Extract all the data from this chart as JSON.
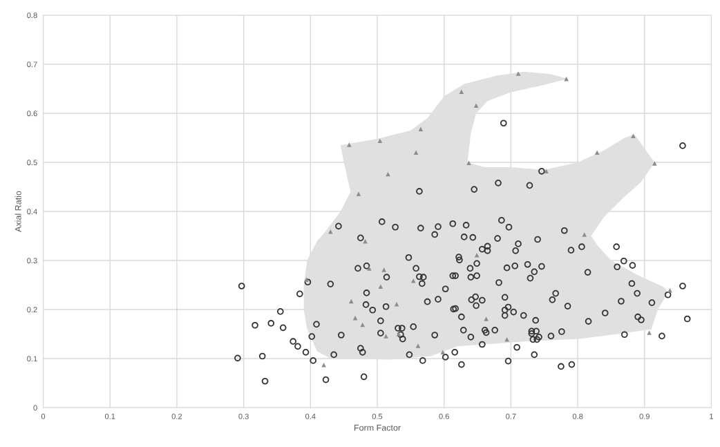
{
  "chart_data": {
    "type": "scatter",
    "xlabel": "Form Factor",
    "ylabel": "Axial Ratio",
    "xlim": [
      0,
      1
    ],
    "ylim": [
      0,
      0.8
    ],
    "xticks": [
      0,
      0.1,
      0.2,
      0.3,
      0.4,
      0.5,
      0.6,
      0.7,
      0.8,
      0.9,
      1
    ],
    "yticks": [
      0,
      0.1,
      0.2,
      0.3,
      0.4,
      0.5,
      0.6,
      0.7,
      0.8
    ],
    "grid": true,
    "series": [
      {
        "type": "area",
        "color": "#e0e0e0",
        "x": [
          0.39,
          0.395,
          0.41,
          0.42,
          0.445,
          0.46,
          0.45,
          0.445,
          0.5,
          0.55,
          0.575,
          0.6,
          0.63,
          0.68,
          0.72,
          0.76,
          0.785,
          0.74,
          0.7,
          0.665,
          0.648,
          0.64,
          0.635,
          0.66,
          0.7,
          0.75,
          0.8,
          0.84,
          0.87,
          0.885,
          0.915,
          0.895,
          0.87,
          0.84,
          0.82,
          0.83,
          0.85,
          0.89,
          0.93,
          0.935,
          0.92,
          0.91,
          0.86,
          0.8,
          0.72,
          0.62,
          0.58,
          0.52,
          0.43,
          0.41,
          0.395,
          0.39
        ],
        "values": [
          0.25,
          0.3,
          0.34,
          0.355,
          0.4,
          0.44,
          0.5,
          0.535,
          0.548,
          0.565,
          0.59,
          0.635,
          0.66,
          0.677,
          0.685,
          0.68,
          0.67,
          0.655,
          0.643,
          0.625,
          0.6,
          0.56,
          0.5,
          0.49,
          0.49,
          0.485,
          0.5,
          0.525,
          0.55,
          0.557,
          0.5,
          0.46,
          0.43,
          0.39,
          0.35,
          0.33,
          0.3,
          0.27,
          0.245,
          0.235,
          0.2,
          0.16,
          0.15,
          0.14,
          0.135,
          0.125,
          0.105,
          0.098,
          0.1,
          0.115,
          0.16,
          0.2
        ]
      },
      {
        "marker": "circle",
        "color": "#333333",
        "x": [
          0.297,
          0.475,
          0.547,
          0.586,
          0.613,
          0.471,
          0.484,
          0.558,
          0.563,
          0.569,
          0.514,
          0.567,
          0.602,
          0.396,
          0.43,
          0.384,
          0.484,
          0.483,
          0.493,
          0.513,
          0.575,
          0.591,
          0.614,
          0.355,
          0.317,
          0.341,
          0.359,
          0.409,
          0.402,
          0.446,
          0.505,
          0.505,
          0.531,
          0.537,
          0.535,
          0.538,
          0.554,
          0.586,
          0.374,
          0.381,
          0.393,
          0.475,
          0.478,
          0.435,
          0.404,
          0.548,
          0.568,
          0.602,
          0.616,
          0.291,
          0.328,
          0.332,
          0.423,
          0.48,
          0.63,
          0.643,
          0.68,
          0.711,
          0.74,
          0.78,
          0.79,
          0.806,
          0.858,
          0.657,
          0.665,
          0.665,
          0.707,
          0.622,
          0.623,
          0.649,
          0.639,
          0.694,
          0.706,
          0.725,
          0.746,
          0.735,
          0.729,
          0.815,
          0.869,
          0.859,
          0.882,
          0.617,
          0.64,
          0.649,
          0.682,
          0.881,
          0.767,
          0.762,
          0.785,
          0.889,
          0.865,
          0.911,
          0.935,
          0.957,
          0.641,
          0.647,
          0.657,
          0.648,
          0.691,
          0.696,
          0.691,
          0.691,
          0.704,
          0.719,
          0.617,
          0.626,
          0.737,
          0.841,
          0.816,
          0.89,
          0.895,
          0.964,
          0.629,
          0.64,
          0.661,
          0.663,
          0.676,
          0.657,
          0.731,
          0.738,
          0.733,
          0.739,
          0.742,
          0.731,
          0.76,
          0.776,
          0.87,
          0.926,
          0.626,
          0.696,
          0.709,
          0.735,
          0.775,
          0.791,
          0.689,
          0.563,
          0.645,
          0.681,
          0.442,
          0.507,
          0.527,
          0.565,
          0.591,
          0.613,
          0.633,
          0.686,
          0.697,
          0.957,
          0.746,
          0.728
        ],
        "values": [
          0.248,
          0.346,
          0.306,
          0.353,
          0.269,
          0.284,
          0.289,
          0.284,
          0.267,
          0.266,
          0.266,
          0.253,
          0.242,
          0.256,
          0.252,
          0.232,
          0.234,
          0.21,
          0.199,
          0.206,
          0.216,
          0.221,
          0.201,
          0.196,
          0.168,
          0.172,
          0.163,
          0.17,
          0.145,
          0.148,
          0.177,
          0.152,
          0.162,
          0.162,
          0.149,
          0.14,
          0.165,
          0.148,
          0.135,
          0.125,
          0.113,
          0.121,
          0.113,
          0.108,
          0.096,
          0.108,
          0.096,
          0.103,
          0.113,
          0.101,
          0.105,
          0.054,
          0.057,
          0.063,
          0.348,
          0.347,
          0.345,
          0.334,
          0.343,
          0.361,
          0.321,
          0.328,
          0.328,
          0.323,
          0.329,
          0.32,
          0.32,
          0.307,
          0.301,
          0.294,
          0.284,
          0.285,
          0.289,
          0.292,
          0.288,
          0.277,
          0.264,
          0.276,
          0.299,
          0.287,
          0.29,
          0.269,
          0.266,
          0.269,
          0.255,
          0.253,
          0.233,
          0.22,
          0.207,
          0.233,
          0.217,
          0.214,
          0.23,
          0.248,
          0.22,
          0.226,
          0.219,
          0.208,
          0.225,
          0.205,
          0.199,
          0.188,
          0.195,
          0.188,
          0.202,
          0.185,
          0.178,
          0.193,
          0.176,
          0.185,
          0.179,
          0.181,
          0.158,
          0.144,
          0.158,
          0.153,
          0.158,
          0.129,
          0.156,
          0.156,
          0.139,
          0.139,
          0.144,
          0.151,
          0.146,
          0.155,
          0.149,
          0.146,
          0.088,
          0.095,
          0.123,
          0.108,
          0.084,
          0.088,
          0.58,
          0.441,
          0.445,
          0.458,
          0.37,
          0.379,
          0.368,
          0.366,
          0.369,
          0.375,
          0.372,
          0.382,
          0.368,
          0.534,
          0.482,
          0.453
        ]
      },
      {
        "marker": "triangle",
        "color": "#8c8c8c",
        "x": [
          0.43,
          0.482,
          0.488,
          0.51,
          0.394,
          0.505,
          0.554,
          0.461,
          0.529,
          0.467,
          0.478,
          0.513,
          0.532,
          0.561,
          0.598,
          0.42,
          0.81,
          0.649,
          0.663,
          0.694,
          0.907,
          0.938,
          0.458,
          0.504,
          0.565,
          0.558,
          0.626,
          0.648,
          0.637,
          0.516,
          0.472,
          0.711,
          0.783,
          0.829,
          0.883,
          0.915,
          0.753
        ],
        "values": [
          0.359,
          0.339,
          0.284,
          0.281,
          0.261,
          0.247,
          0.259,
          0.217,
          0.211,
          0.183,
          0.169,
          0.146,
          0.15,
          0.126,
          0.113,
          0.087,
          0.353,
          0.311,
          0.181,
          0.139,
          0.153,
          0.239,
          0.536,
          0.544,
          0.568,
          0.52,
          0.644,
          0.616,
          0.499,
          0.476,
          0.436,
          0.681,
          0.67,
          0.52,
          0.554,
          0.498,
          0.482
        ]
      }
    ]
  }
}
